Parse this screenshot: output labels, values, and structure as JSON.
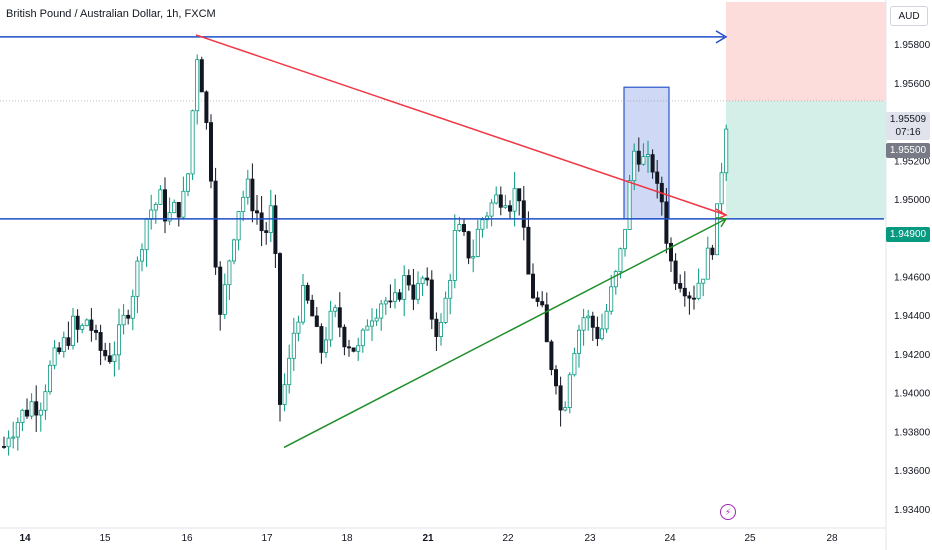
{
  "header": {
    "title": "British Pound / Australian Dollar, 1h, FXCM"
  },
  "price_axis": {
    "currency": "AUD",
    "current_price": "1.95509",
    "countdown": "07:16",
    "mid_price_label": "1.95500",
    "support_price_label": "1.94900"
  },
  "colors": {
    "up": "#089981",
    "down": "#131722",
    "resistance_line": "#1e4fc9",
    "trend_down": "#f23645",
    "trend_up": "#1f8f2a",
    "stop_zone": "#fddcdc",
    "target_zone": "#d4efe7",
    "range_box": "#c3d0f2"
  },
  "icons": {
    "flash": "lightning-bolt-icon"
  },
  "chart_data": {
    "type": "candlestick",
    "title": "British Pound / Australian Dollar, 1h, FXCM",
    "currency": "AUD",
    "x_labels": [
      "14",
      "15",
      "16",
      "17",
      "18",
      "21",
      "22",
      "23",
      "24",
      "25",
      "28"
    ],
    "x_label_bold": [
      "14",
      "21"
    ],
    "y_ticks": [
      "1.95800",
      "1.95600",
      "1.95200",
      "1.95000",
      "1.94800",
      "1.94600",
      "1.94400",
      "1.94200",
      "1.94000",
      "1.93800",
      "1.93600",
      "1.93400"
    ],
    "y_range": [
      1.9334,
      1.9602
    ],
    "price_path": [
      [
        0,
        1.9365
      ],
      [
        8,
        1.938
      ],
      [
        16,
        1.9385
      ],
      [
        24,
        1.939
      ],
      [
        32,
        1.9395
      ],
      [
        40,
        1.9395
      ],
      [
        48,
        1.941
      ],
      [
        56,
        1.9418
      ],
      [
        64,
        1.9425
      ],
      [
        72,
        1.9435
      ],
      [
        80,
        1.943
      ],
      [
        88,
        1.944
      ],
      [
        96,
        1.9425
      ],
      [
        104,
        1.942
      ],
      [
        112,
        1.942
      ],
      [
        120,
        1.943
      ],
      [
        128,
        1.9445
      ],
      [
        136,
        1.946
      ],
      [
        144,
        1.9488
      ],
      [
        152,
        1.9496
      ],
      [
        160,
        1.95
      ],
      [
        168,
        1.949
      ],
      [
        176,
        1.9495
      ],
      [
        184,
        1.95
      ],
      [
        190,
        1.952
      ],
      [
        196,
        1.958
      ],
      [
        202,
        1.956
      ],
      [
        210,
        1.952
      ],
      [
        214,
        1.95
      ],
      [
        218,
        1.943
      ],
      [
        224,
        1.945
      ],
      [
        232,
        1.948
      ],
      [
        240,
        1.95
      ],
      [
        248,
        1.9505
      ],
      [
        256,
        1.9495
      ],
      [
        264,
        1.948
      ],
      [
        272,
        1.9495
      ],
      [
        276,
        1.946
      ],
      [
        280,
        1.9395
      ],
      [
        288,
        1.941
      ],
      [
        296,
        1.944
      ],
      [
        304,
        1.945
      ],
      [
        312,
        1.944
      ],
      [
        320,
        1.942
      ],
      [
        328,
        1.9435
      ],
      [
        336,
        1.944
      ],
      [
        344,
        1.943
      ],
      [
        352,
        1.9425
      ],
      [
        360,
        1.942
      ],
      [
        368,
        1.944
      ],
      [
        376,
        1.9445
      ],
      [
        384,
        1.945
      ],
      [
        392,
        1.944
      ],
      [
        400,
        1.9455
      ],
      [
        408,
        1.946
      ],
      [
        416,
        1.945
      ],
      [
        424,
        1.946
      ],
      [
        432,
        1.944
      ],
      [
        440,
        1.943
      ],
      [
        448,
        1.9455
      ],
      [
        456,
        1.9485
      ],
      [
        464,
        1.9478
      ],
      [
        472,
        1.947
      ],
      [
        480,
        1.9488
      ],
      [
        488,
        1.9495
      ],
      [
        496,
        1.95
      ],
      [
        504,
        1.9505
      ],
      [
        512,
        1.9498
      ],
      [
        518,
        1.951
      ],
      [
        522,
        1.949
      ],
      [
        526,
        1.9465
      ],
      [
        534,
        1.945
      ],
      [
        542,
        1.944
      ],
      [
        548,
        1.942
      ],
      [
        556,
        1.941
      ],
      [
        562,
        1.9385
      ],
      [
        568,
        1.941
      ],
      [
        576,
        1.943
      ],
      [
        584,
        1.944
      ],
      [
        592,
        1.9435
      ],
      [
        600,
        1.943
      ],
      [
        608,
        1.9445
      ],
      [
        616,
        1.946
      ],
      [
        622,
        1.9475
      ],
      [
        628,
        1.95
      ],
      [
        634,
        1.9525
      ],
      [
        640,
        1.9525
      ],
      [
        646,
        1.9515
      ],
      [
        652,
        1.952
      ],
      [
        658,
        1.95
      ],
      [
        664,
        1.95
      ],
      [
        668,
        1.947
      ],
      [
        676,
        1.9462
      ],
      [
        684,
        1.9458
      ],
      [
        692,
        1.945
      ],
      [
        700,
        1.946
      ],
      [
        708,
        1.947
      ],
      [
        716,
        1.9485
      ],
      [
        722,
        1.952
      ],
      [
        728,
        1.9551
      ]
    ],
    "annotations": {
      "resistance_level": 1.9584,
      "support_level": 1.949,
      "descending_trendline": {
        "from": [
          196,
          1.9585
        ],
        "to": [
          726,
          1.9492
        ]
      },
      "ascending_trendline": {
        "from": [
          284,
          1.9372
        ],
        "to": [
          726,
          1.949
        ]
      },
      "range_box": {
        "x": [
          624,
          669
        ],
        "y": [
          1.949,
          1.9558
        ]
      },
      "stop_zone": {
        "x": [
          726,
          886
        ],
        "y": [
          1.95509,
          1.9602
        ]
      },
      "target_zone": {
        "x": [
          726,
          886
        ],
        "y": [
          1.949,
          1.95509
        ]
      }
    }
  }
}
